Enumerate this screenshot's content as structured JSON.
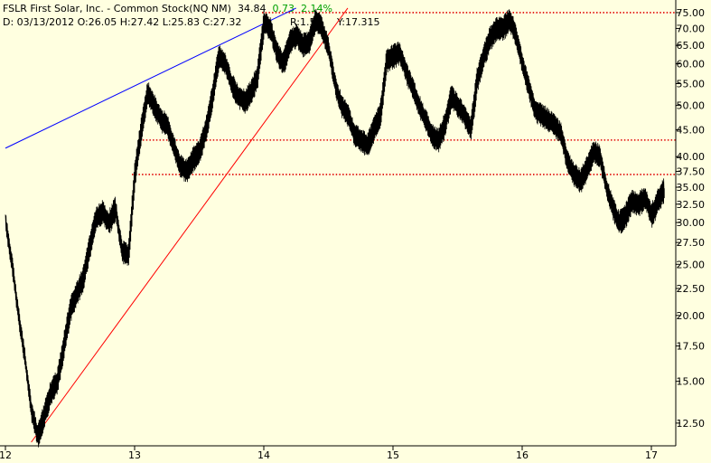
{
  "header": {
    "title": "FSLR First Solar, Inc. - Common Stock(NQ NM)",
    "last": "34.84",
    "change": "0.73",
    "pct": "2.14%",
    "ohlc": "D: 03/13/2012 O:26.05 H:27.42 L:25.83 C:27.32",
    "r": "R:1.59",
    "y": "Y:17.315"
  },
  "colors": {
    "background": "#ffffe0",
    "price": "#000000",
    "resistance": "#e00000",
    "upper_trend": "#0000ff",
    "lower_trend": "#ff0000",
    "positive": "#00a000"
  },
  "chart_data": {
    "type": "line",
    "title": "FSLR First Solar, Inc. - Common Stock(NQ NM)",
    "y_scale": "log",
    "ylim": [
      11.5,
      78
    ],
    "y_ticks": [
      "12.50",
      "15.00",
      "17.50",
      "20.00",
      "22.50",
      "25.00",
      "27.50",
      "30.00",
      "32.50",
      "35.00",
      "37.50",
      "40.00",
      "45.00",
      "50.00",
      "55.00",
      "60.00",
      "65.00",
      "70.00",
      "75.00"
    ],
    "x_ticks": [
      "12",
      "13",
      "14",
      "15",
      "16",
      "17"
    ],
    "xlim": [
      12,
      17.3
    ],
    "series": [
      {
        "x": [
          12.0,
          12.05,
          12.1,
          12.15,
          12.2,
          12.25,
          12.3,
          12.35,
          12.4,
          12.45,
          12.5,
          12.55,
          12.6,
          12.65,
          12.7,
          12.75,
          12.8,
          12.85,
          12.9,
          12.95,
          13.0,
          13.05,
          13.1,
          13.15,
          13.2,
          13.25,
          13.3,
          13.35,
          13.4,
          13.45,
          13.5,
          13.55,
          13.6,
          13.65,
          13.7,
          13.75,
          13.8,
          13.85,
          13.9,
          13.95,
          14.0,
          14.05,
          14.1,
          14.15,
          14.2,
          14.25,
          14.3,
          14.35,
          14.4,
          14.45,
          14.5,
          14.55,
          14.6,
          14.65,
          14.7,
          14.75,
          14.8,
          14.85,
          14.9,
          14.95,
          15.0,
          15.05,
          15.1,
          15.15,
          15.2,
          15.25,
          15.3,
          15.35,
          15.4,
          15.45,
          15.5,
          15.55,
          15.6,
          15.65,
          15.7,
          15.75,
          15.8,
          15.85,
          15.9,
          15.95,
          16.0,
          16.05,
          16.1,
          16.15,
          16.2,
          16.25,
          16.3,
          16.35,
          16.4,
          16.45,
          16.5,
          16.55,
          16.6,
          16.65,
          16.7,
          16.75,
          16.8,
          16.85,
          16.9,
          16.95,
          17.0,
          17.05,
          17.1
        ],
        "values": [
          30.0,
          25.0,
          20.0,
          16.5,
          13.2,
          11.8,
          13.0,
          14.3,
          15.0,
          17.5,
          20.5,
          22.0,
          23.5,
          27.0,
          30.5,
          31.5,
          30.0,
          32.0,
          26.5,
          26.0,
          37.0,
          45.0,
          53.0,
          50.0,
          47.0,
          46.0,
          42.0,
          38.5,
          37.5,
          39.5,
          41.0,
          45.0,
          52.0,
          62.0,
          60.0,
          55.0,
          52.0,
          51.0,
          53.0,
          57.0,
          72.0,
          70.0,
          63.0,
          60.0,
          66.0,
          68.0,
          65.0,
          66.0,
          73.0,
          70.0,
          64.0,
          55.0,
          50.0,
          48.0,
          44.0,
          43.0,
          42.0,
          45.0,
          48.0,
          61.0,
          62.0,
          63.0,
          58.0,
          54.0,
          50.0,
          47.0,
          44.0,
          43.0,
          46.0,
          52.0,
          50.0,
          48.0,
          45.0,
          56.0,
          62.0,
          67.0,
          70.0,
          70.0,
          73.0,
          68.0,
          60.0,
          54.0,
          49.0,
          48.0,
          47.0,
          46.0,
          44.0,
          39.0,
          37.0,
          36.0,
          38.0,
          41.0,
          40.0,
          35.0,
          32.0,
          30.0,
          31.0,
          33.0,
          32.5,
          33.5,
          31.0,
          33.0,
          34.84
        ]
      }
    ],
    "annotations": {
      "horizontal_lines": [
        75.0,
        43.0,
        37.0
      ],
      "upper_trendline": {
        "x": [
          12.0,
          14.25
        ],
        "y": [
          41.5,
          76.5
        ]
      },
      "lower_trendline": {
        "x": [
          12.2,
          14.65
        ],
        "y": [
          11.5,
          76.5
        ]
      }
    }
  }
}
